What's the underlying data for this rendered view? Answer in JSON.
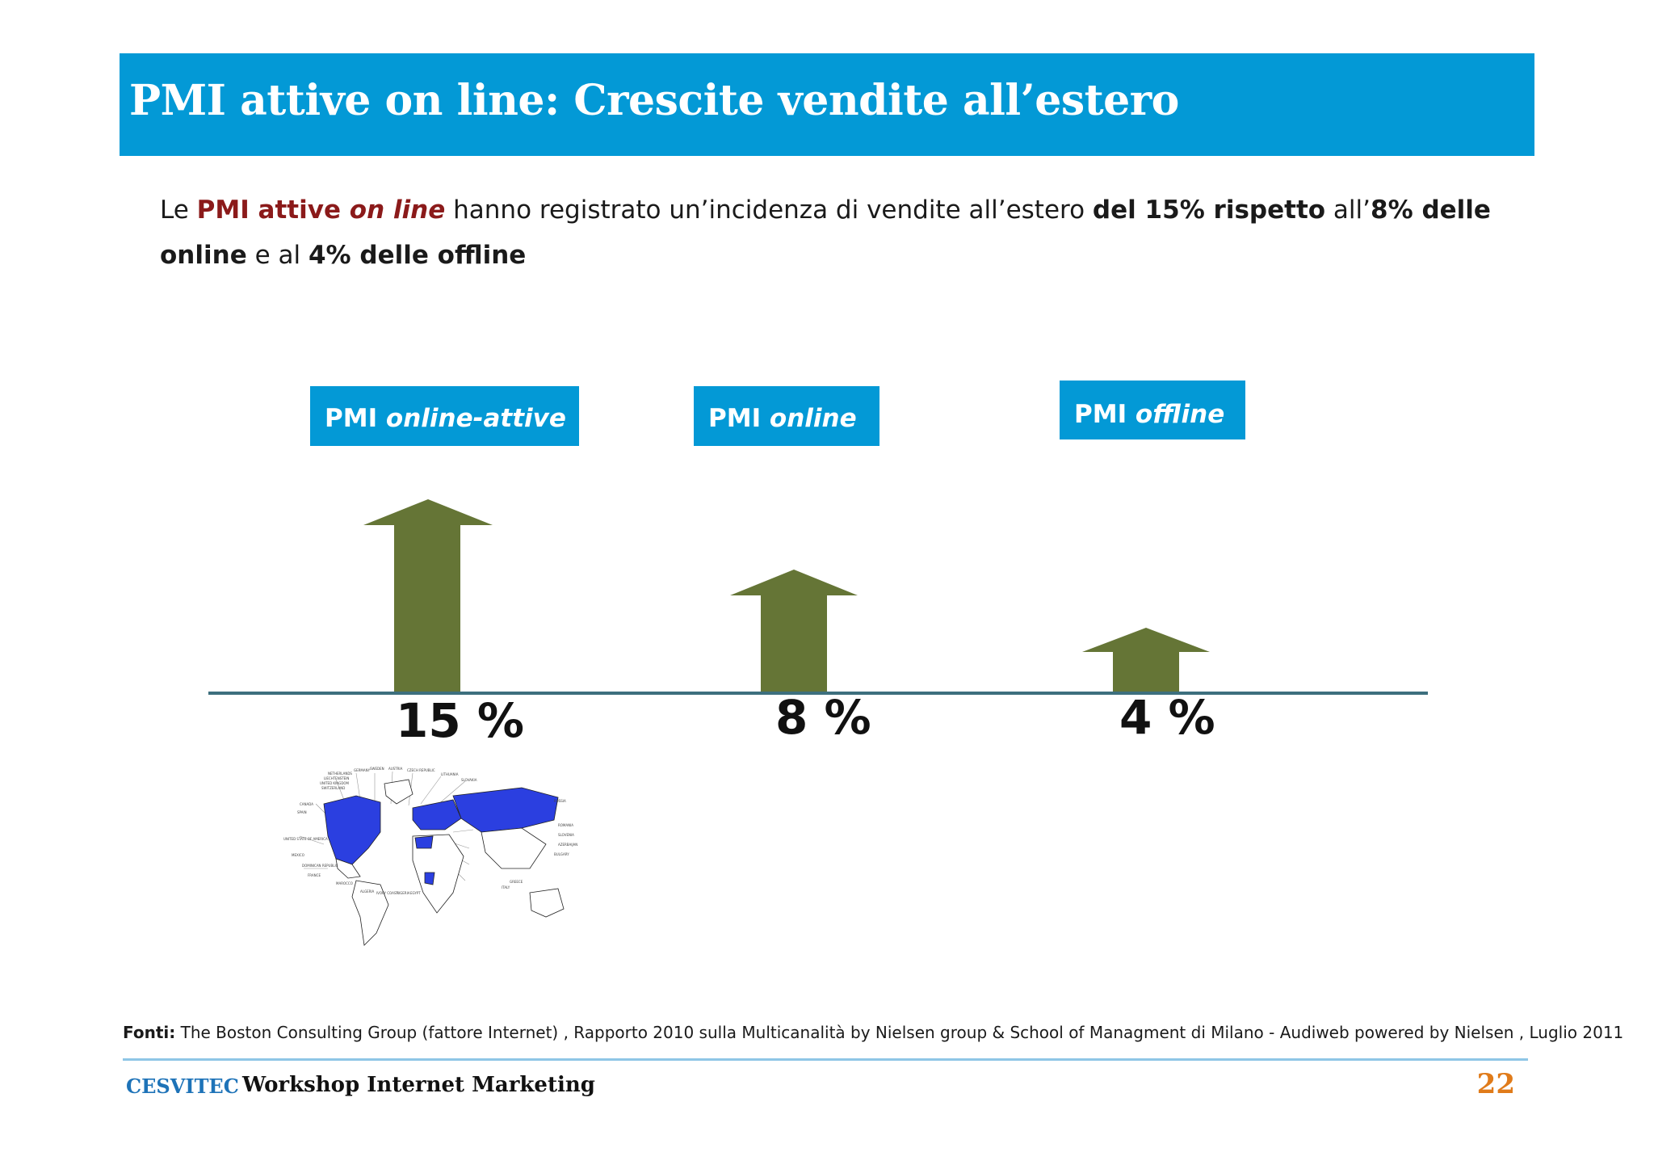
{
  "header": {
    "title": "PMI attive on line: Crescite vendite all’estero"
  },
  "intro": {
    "p1": "Le ",
    "p2": "PMI attive ",
    "p3": "on line",
    "p4": " hanno registrato un’incidenza di vendite all’estero ",
    "p5": "del 15% rispetto",
    "p6": " all’",
    "p7": "8% delle online",
    "p8": " e al ",
    "p9": "4% delle offline"
  },
  "groups": [
    {
      "label_prefix": "PMI ",
      "label_italic": "online-attive",
      "percent": "15 %",
      "value": 15
    },
    {
      "label_prefix": "PMI ",
      "label_italic": "online",
      "percent": "8 %",
      "value": 8
    },
    {
      "label_prefix": "PMI ",
      "label_italic": "offline",
      "percent": "4 %",
      "value": 4
    }
  ],
  "map": {
    "labels": [
      "NETHERLANDS",
      "GERMANY",
      "SWEDEN",
      "AUSTRIA",
      "CZECH REPUBLIC",
      "LIECHTENSTEIN",
      "UNITED KINGDOM",
      "LITHUANIA",
      "SLOVAKIA",
      "SWITZERLAND",
      "RUSSIA",
      "CANADA",
      "SPAIN",
      "ROMANIA",
      "UNITED STATE OF AMERICA",
      "SLOVENIA",
      "AZERBAIJAN",
      "MEXICO",
      "BULGARY",
      "DOMINICAN REPUBLIC",
      "FRANCE",
      "GREECE",
      "MAROCCO",
      "ITALY",
      "ALGERIA",
      "IVORY COAST",
      "NIGERIA",
      "EGYPT"
    ],
    "highlight_color": "#2b3fe0"
  },
  "footer": {
    "sources_label": "Fonti:",
    "sources_text": " The Boston Consulting Group (fattore Internet) , Rapporto 2010 sulla Multicanalità by Nielsen group & School of Managment di Milano -  Audiweb powered by Nielsen , Luglio 2011",
    "logo": "CESVITEC",
    "workshop": "Workshop Internet Marketing",
    "page_number": "22"
  },
  "colors": {
    "accent_blue": "#0399d6",
    "arrow_green": "#657536",
    "baseline": "#3d6f7e",
    "page_number": "#e07b1a",
    "emphasis_red": "#8b1a1a"
  }
}
